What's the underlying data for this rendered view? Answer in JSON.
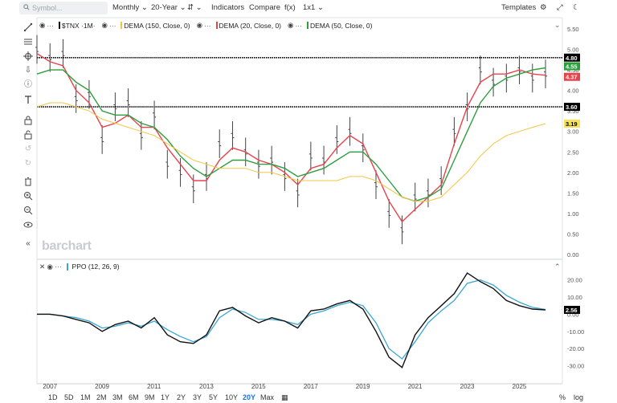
{
  "topbar": {
    "search_placeholder": "Symbol...",
    "interval": "Monthly",
    "range": "20-Year",
    "indicators": "Indicators",
    "compare": "Compare",
    "fx": "f(x)",
    "layout": "1x1",
    "templates": "Templates"
  },
  "legend": {
    "symbol": "$TNX ·1M·",
    "dema150": "DEMA (150, Close, 0)",
    "dema20": "DEMA (20, Close, 0)",
    "dema50": "DEMA (50, Close, 0)",
    "ppo": "PPO (12, 26, 9)"
  },
  "watermark": "barchart",
  "colors": {
    "price": "#333333",
    "dema150": "#f5c542",
    "dema20": "#e8434d",
    "dema50": "#2e9e3f",
    "ppo": "#111111",
    "ppo_signal": "#3aa7d6",
    "price_badge": "#111111",
    "hline": "#000000"
  },
  "price_axis": {
    "ticks": [
      "5.50",
      "5.00",
      "4.50",
      "4.00",
      "3.50",
      "3.00",
      "2.50",
      "2.00",
      "1.50",
      "1.00",
      "0.50",
      "0.00"
    ],
    "badges": [
      {
        "label": "4.80",
        "bg": "#000000",
        "fg": "#ffffff"
      },
      {
        "label": "4.55",
        "bg": "#2e9e3f",
        "fg": "#ffffff"
      },
      {
        "label": "4.37",
        "bg": "#e8434d",
        "fg": "#ffffff"
      },
      {
        "label": "3.60",
        "bg": "#000000",
        "fg": "#ffffff"
      },
      {
        "label": "3.19",
        "bg": "#f5e25a",
        "fg": "#000000"
      }
    ]
  },
  "ppo_axis": {
    "ticks": [
      "20.00",
      "10.00",
      "0.00",
      "-10.00",
      "-20.00",
      "-30.00"
    ],
    "badge": "2.56"
  },
  "x_axis": {
    "labels": [
      "2007",
      "2009",
      "2011",
      "2013",
      "2015",
      "2017",
      "2019",
      "2021",
      "2023",
      "2025"
    ]
  },
  "bottombar": {
    "ranges": [
      "1D",
      "5D",
      "1M",
      "2M",
      "3M",
      "6M",
      "9M",
      "1Y",
      "2Y",
      "3Y",
      "5Y",
      "10Y",
      "20Y",
      "Max"
    ],
    "active": "20Y",
    "percent": "%",
    "log": "log"
  },
  "chart_data": {
    "type": "line",
    "title": "",
    "price_hlines": [
      4.8,
      3.6
    ],
    "ylim": [
      0,
      5.5
    ],
    "x": [
      2006.5,
      2007,
      2007.5,
      2008,
      2008.5,
      2009,
      2009.5,
      2010,
      2010.5,
      2011,
      2011.5,
      2012,
      2012.5,
      2013,
      2013.5,
      2014,
      2014.5,
      2015,
      2015.5,
      2016,
      2016.5,
      2017,
      2017.5,
      2018,
      2018.5,
      2019,
      2019.5,
      2020,
      2020.5,
      2021,
      2021.5,
      2022,
      2022.5,
      2023,
      2023.5,
      2024,
      2024.5,
      2025,
      2025.5,
      2026
    ],
    "series": [
      {
        "name": "$TNX",
        "values": [
          5.0,
          4.8,
          4.9,
          3.8,
          3.9,
          2.8,
          3.6,
          3.7,
          2.9,
          3.4,
          2.2,
          2.0,
          1.6,
          1.9,
          2.7,
          2.9,
          2.5,
          2.2,
          2.3,
          1.9,
          1.5,
          2.4,
          2.3,
          2.8,
          3.0,
          2.6,
          1.7,
          1.0,
          0.6,
          1.4,
          1.5,
          1.8,
          3.0,
          3.6,
          4.5,
          4.2,
          4.3,
          4.5,
          4.3,
          4.4
        ]
      },
      {
        "name": "DEMA (20, Close, 0)",
        "values": [
          4.9,
          4.7,
          4.6,
          4.0,
          3.7,
          3.1,
          3.2,
          3.4,
          3.1,
          3.1,
          2.6,
          2.2,
          1.8,
          1.8,
          2.3,
          2.6,
          2.5,
          2.3,
          2.2,
          2.0,
          1.7,
          2.1,
          2.2,
          2.6,
          2.9,
          2.7,
          2.0,
          1.3,
          0.8,
          1.1,
          1.4,
          1.7,
          2.7,
          3.6,
          4.2,
          4.4,
          4.4,
          4.5,
          4.4,
          4.37
        ]
      },
      {
        "name": "DEMA (50, Close, 0)",
        "values": [
          4.4,
          4.5,
          4.5,
          4.2,
          4.0,
          3.5,
          3.4,
          3.4,
          3.2,
          3.1,
          2.8,
          2.4,
          2.1,
          1.9,
          2.1,
          2.3,
          2.3,
          2.2,
          2.2,
          2.1,
          1.9,
          2.0,
          2.1,
          2.3,
          2.5,
          2.5,
          2.2,
          1.8,
          1.4,
          1.3,
          1.4,
          1.6,
          2.3,
          3.0,
          3.7,
          4.1,
          4.3,
          4.4,
          4.5,
          4.55
        ]
      },
      {
        "name": "DEMA (150, Close, 0)",
        "values": [
          3.6,
          3.7,
          3.7,
          3.6,
          3.5,
          3.3,
          3.2,
          3.1,
          3.0,
          2.9,
          2.7,
          2.5,
          2.3,
          2.2,
          2.1,
          2.1,
          2.1,
          2.0,
          2.0,
          1.9,
          1.8,
          1.8,
          1.8,
          1.8,
          1.9,
          1.9,
          1.8,
          1.6,
          1.4,
          1.3,
          1.3,
          1.4,
          1.7,
          2.0,
          2.4,
          2.7,
          2.9,
          3.0,
          3.1,
          3.19
        ]
      }
    ],
    "ppo": {
      "ylim": [
        -33,
        25
      ],
      "series": [
        {
          "name": "PPO",
          "values": [
            0,
            0,
            -1,
            -3,
            -5,
            -10,
            -6,
            -4,
            -8,
            -2,
            -12,
            -16,
            -17,
            -12,
            2,
            4,
            -1,
            -5,
            -2,
            -4,
            -8,
            2,
            3,
            6,
            8,
            3,
            -10,
            -25,
            -31,
            -12,
            -2,
            5,
            12,
            24,
            19,
            15,
            8,
            5,
            3,
            2.56
          ]
        },
        {
          "name": "Signal",
          "values": [
            0,
            0,
            -1,
            -2,
            -4,
            -8,
            -7,
            -5,
            -7,
            -4,
            -9,
            -13,
            -16,
            -13,
            -2,
            3,
            1,
            -3,
            -3,
            -4,
            -6,
            0,
            2,
            5,
            7,
            5,
            -5,
            -20,
            -26,
            -16,
            -5,
            2,
            8,
            18,
            20,
            17,
            11,
            7,
            4,
            2.8
          ]
        }
      ]
    }
  }
}
